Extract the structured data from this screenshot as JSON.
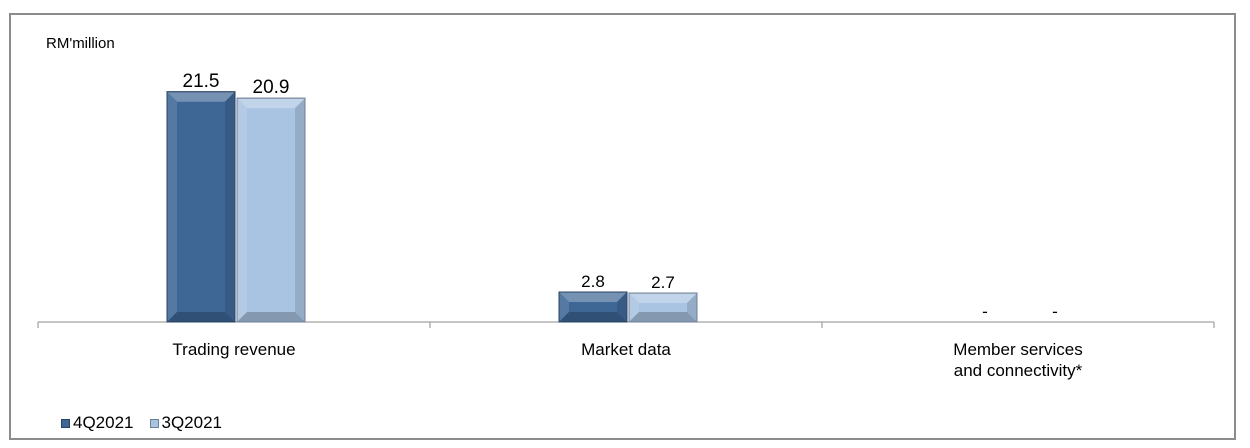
{
  "chart_data": {
    "type": "bar",
    "unit_label": "RM'million",
    "categories": [
      "Trading revenue",
      "Market data",
      "Member services and connectivity*"
    ],
    "category_lines": [
      [
        "Trading revenue"
      ],
      [
        "Market data"
      ],
      [
        "Member services",
        "and connectivity*"
      ]
    ],
    "series": [
      {
        "name": "4Q2021",
        "values": [
          21.5,
          2.8,
          0
        ],
        "labels": [
          "21.5",
          "2.8",
          "-"
        ],
        "color": "#3f6796"
      },
      {
        "name": "3Q2021",
        "values": [
          20.9,
          2.7,
          0
        ],
        "labels": [
          "20.9",
          "2.7",
          "-"
        ],
        "color": "#a9c3e2"
      }
    ],
    "ylim": [
      0,
      24
    ],
    "grid": false,
    "legend_position": "bottom-left"
  }
}
